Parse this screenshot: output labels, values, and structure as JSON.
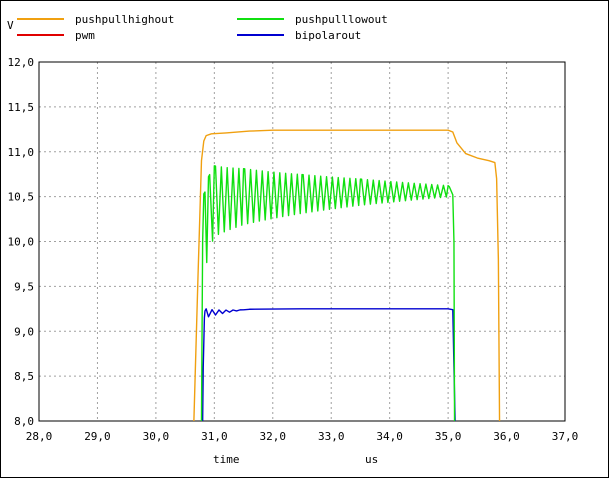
{
  "chart_data": {
    "type": "line",
    "title": "",
    "ylabel": "V",
    "xlabel": "time",
    "xunit": "us",
    "xlim": [
      28.0,
      37.0
    ],
    "ylim": [
      8.0,
      12.0
    ],
    "xticks": [
      "28,0",
      "29,0",
      "30,0",
      "31,0",
      "32,0",
      "33,0",
      "34,0",
      "35,0",
      "36,0",
      "37,0"
    ],
    "yticks": [
      "8,0",
      "8,5",
      "9,0",
      "9,5",
      "10,0",
      "10,5",
      "11,0",
      "11,5",
      "12,0"
    ],
    "grid": true,
    "legend_position": "top",
    "series": [
      {
        "name": "pushpullhighout",
        "color": "#f0a010",
        "points": [
          [
            30.65,
            7.9
          ],
          [
            30.72,
            9.6
          ],
          [
            30.78,
            10.9
          ],
          [
            30.82,
            11.12
          ],
          [
            30.86,
            11.18
          ],
          [
            30.95,
            11.2
          ],
          [
            31.2,
            11.21
          ],
          [
            31.6,
            11.23
          ],
          [
            32.0,
            11.24
          ],
          [
            32.5,
            11.24
          ],
          [
            33.0,
            11.24
          ],
          [
            34.0,
            11.24
          ],
          [
            35.0,
            11.24
          ],
          [
            35.08,
            11.22
          ],
          [
            35.15,
            11.1
          ],
          [
            35.3,
            10.98
          ],
          [
            35.5,
            10.93
          ],
          [
            35.7,
            10.9
          ],
          [
            35.8,
            10.88
          ],
          [
            35.83,
            10.7
          ],
          [
            35.86,
            9.8
          ],
          [
            35.88,
            7.9
          ]
        ]
      },
      {
        "name": "pwm",
        "color": "#e00000",
        "points": []
      },
      {
        "name": "pushpulllowout",
        "color": "#10e010",
        "points": [
          [
            30.78,
            7.9
          ],
          [
            30.8,
            10.0
          ],
          [
            30.84,
            10.1
          ],
          [
            30.9,
            10.3
          ],
          [
            31.0,
            10.45
          ],
          [
            31.5,
            10.5
          ],
          [
            32.5,
            10.53
          ],
          [
            33.5,
            10.55
          ],
          [
            35.0,
            10.56
          ],
          [
            35.08,
            10.52
          ],
          [
            35.1,
            10.0
          ],
          [
            35.11,
            7.9
          ]
        ],
        "oscillation": {
          "start": 30.82,
          "end": 35.05,
          "initial_amplitude": 0.48,
          "final_amplitude": 0.06,
          "period": 0.1
        }
      },
      {
        "name": "bipolarout",
        "color": "#0000d0",
        "points": [
          [
            30.8,
            7.9
          ],
          [
            30.81,
            8.6
          ],
          [
            30.83,
            9.15
          ],
          [
            30.86,
            9.2
          ],
          [
            31.6,
            9.245
          ],
          [
            32.5,
            9.25
          ],
          [
            35.0,
            9.25
          ],
          [
            35.08,
            9.24
          ],
          [
            35.1,
            8.6
          ],
          [
            35.12,
            7.9
          ]
        ],
        "oscillation": {
          "start": 30.84,
          "end": 31.5,
          "initial_amplitude": 0.06,
          "final_amplitude": 0.0,
          "period": 0.12
        }
      }
    ]
  }
}
